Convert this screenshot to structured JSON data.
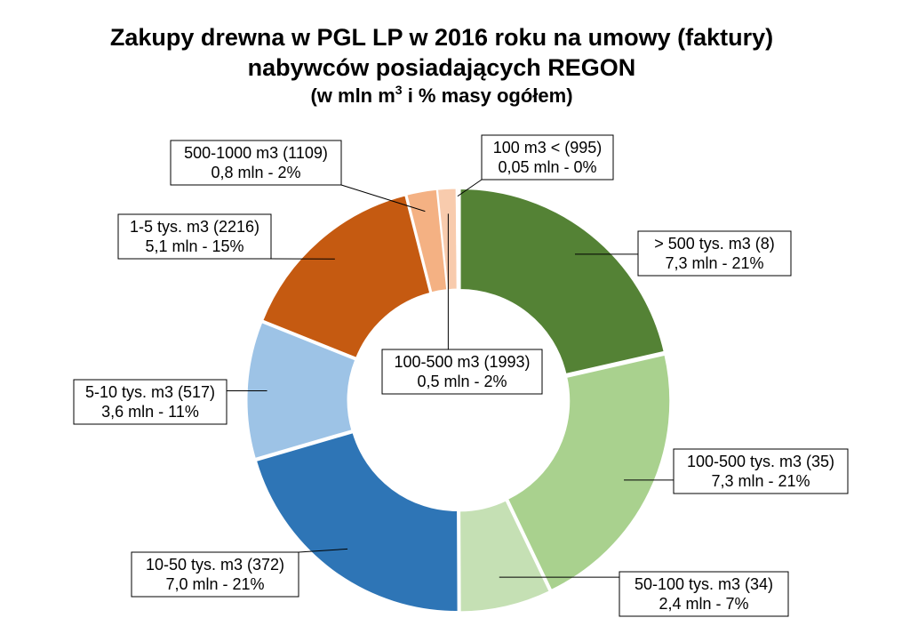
{
  "chart_data": {
    "type": "pie",
    "title": "Zakupy drewna w PGL LP w 2016 roku na umowy (faktury)",
    "subtitle": "nabywców posiadających REGON",
    "subtitle2_prefix": "(w mln m",
    "subtitle2_sup": "3",
    "subtitle2_suffix": " i % masy ogółem)",
    "slices": [
      {
        "line1": "> 500 tys. m3 (8)",
        "line2": "7,3 mln - 21%",
        "value": 7.3,
        "color": "#548235"
      },
      {
        "line1": "100-500 tys. m3 (35)",
        "line2": "7,3 mln - 21%",
        "value": 7.3,
        "color": "#A9D18E"
      },
      {
        "line1": "50-100 tys. m3 (34)",
        "line2": "2,4 mln - 7%",
        "value": 2.4,
        "color": "#C5E0B4"
      },
      {
        "line1": "10-50 tys. m3 (372)",
        "line2": "7,0 mln - 21%",
        "value": 7.0,
        "color": "#2E75B6"
      },
      {
        "line1": "5-10 tys. m3 (517)",
        "line2": "3,6 mln - 11%",
        "value": 3.6,
        "color": "#9DC3E6"
      },
      {
        "line1": "1-5 tys. m3 (2216)",
        "line2": "5,1 mln - 15%",
        "value": 5.1,
        "color": "#C55A11"
      },
      {
        "line1": "500-1000 m3 (1109)",
        "line2": "0,8 mln - 2%",
        "value": 0.8,
        "color": "#F4B183"
      },
      {
        "line1": "100-500 m3 (1993)",
        "line2": "0,5 mln - 2%",
        "value": 0.5,
        "color": "#F8CBAD"
      },
      {
        "line1": "100 m3 < (995)",
        "line2": "0,05 mln - 0%",
        "value": 0.05,
        "color": "#FBE5D6"
      }
    ]
  }
}
